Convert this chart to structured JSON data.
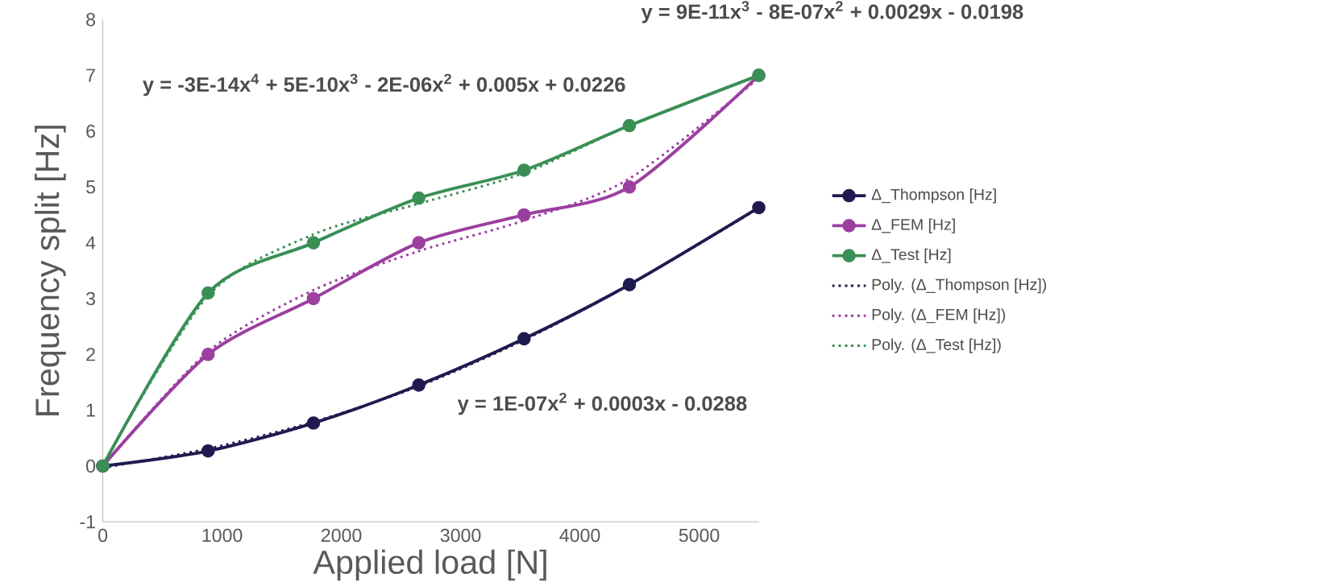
{
  "chart_data": {
    "type": "line",
    "xlabel": "Applied load [N]",
    "ylabel": "Frequency split [Hz]",
    "xlim": [
      0,
      5500
    ],
    "ylim": [
      -1,
      8
    ],
    "xticks": [
      0,
      1000,
      2000,
      3000,
      4000,
      5000
    ],
    "yticks": [
      -1,
      0,
      1,
      2,
      3,
      4,
      5,
      6,
      7,
      8
    ],
    "grid": false,
    "legend": "right",
    "series": [
      {
        "name": "Δ_Thompson [Hz]",
        "color": "#1f1a4f",
        "marker": "circle",
        "line_style": "solid",
        "x": [
          0,
          883,
          1766,
          2649,
          3532,
          4415,
          5500
        ],
        "values": [
          0,
          0.27,
          0.77,
          1.45,
          2.28,
          3.25,
          4.63
        ]
      },
      {
        "name": "Δ_FEM [Hz]",
        "color": "#9b3fa0",
        "marker": "circle",
        "line_style": "solid",
        "x": [
          0,
          883,
          1766,
          2649,
          3532,
          4415,
          5500
        ],
        "values": [
          0,
          2,
          3,
          4,
          4.5,
          5,
          7
        ]
      },
      {
        "name": "Δ_Test [Hz]",
        "color": "#3a8f55",
        "marker": "circle",
        "line_style": "solid",
        "x": [
          0,
          883,
          1766,
          2649,
          3532,
          4415,
          5500
        ],
        "values": [
          0,
          3.1,
          4,
          4.8,
          5.3,
          6.1,
          7
        ]
      },
      {
        "name": "Poly. (Δ_Thompson [Hz])",
        "color": "#1f1a4f",
        "marker": "none",
        "line_style": "dotted",
        "x": [
          0,
          883,
          1766,
          2649,
          3532,
          4415,
          5500
        ],
        "values": [
          -0.03,
          0.31,
          0.79,
          1.43,
          2.26,
          3.25,
          4.62
        ]
      },
      {
        "name": "Poly. (Δ_FEM [Hz])",
        "color": "#9b3fa0",
        "marker": "none",
        "line_style": "dotted",
        "x": [
          0,
          883,
          1766,
          2649,
          3532,
          4415,
          5500
        ],
        "values": [
          0,
          2.05,
          3.15,
          3.85,
          4.4,
          5.15,
          6.95
        ]
      },
      {
        "name": "Poly. (Δ_Test [Hz])",
        "color": "#3a8f55",
        "marker": "none",
        "line_style": "dotted",
        "x": [
          0,
          883,
          1766,
          2649,
          3532,
          4415,
          5500
        ],
        "values": [
          0.02,
          3.05,
          4.15,
          4.7,
          5.25,
          6.1,
          7
        ]
      }
    ],
    "annotations": [
      "y = 9E-11x$^{3}$ - 8E-07x$^{2}$ + 0.0029x - 0.0198",
      "y = -3E-14x$^{4}$ + 5E-10x$^{3}$ - 2E-06x$^{2}$ + 0.005x + 0.0226",
      "y = 1E-07x$^{2}$ + 0.0003x - 0.0288"
    ]
  }
}
